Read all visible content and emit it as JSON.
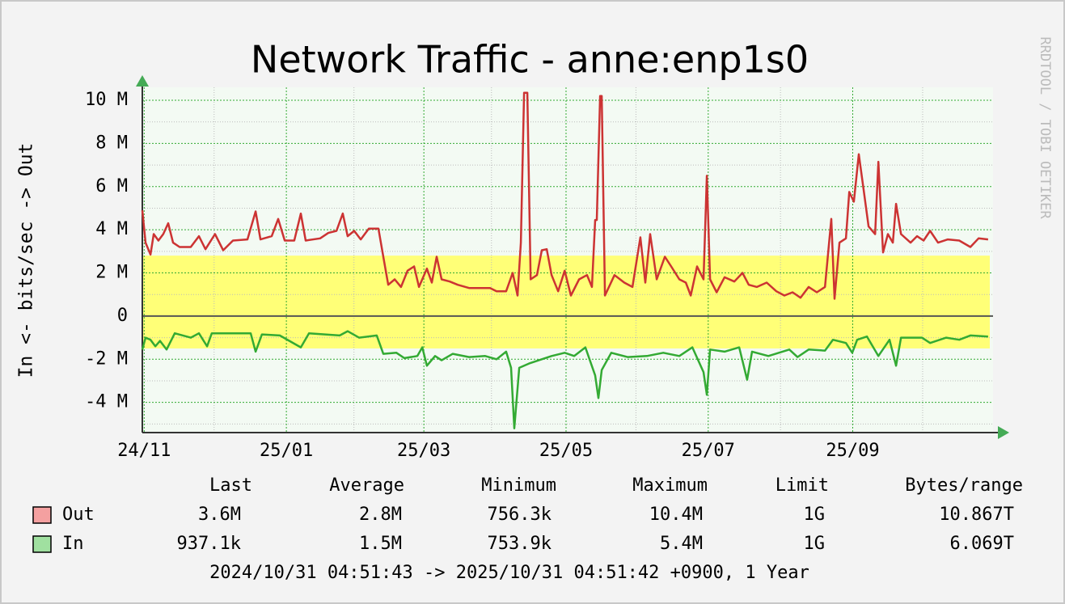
{
  "chart_data": {
    "type": "line",
    "title": "Network Traffic - anne:enp1s0",
    "y_label": "In <- bits/sec -> Out",
    "watermark": "RRDTOOL / TOBI OETIKER",
    "xlim": [
      0,
      365
    ],
    "xticks": [
      {
        "value": 0.8,
        "label": "24/11"
      },
      {
        "value": 61.8,
        "label": "25/01"
      },
      {
        "value": 120.8,
        "label": "25/03"
      },
      {
        "value": 181.8,
        "label": "25/05"
      },
      {
        "value": 242.8,
        "label": "25/07"
      },
      {
        "value": 304.8,
        "label": "25/09"
      }
    ],
    "xminor": [
      30.8,
      90.8,
      149.8,
      211.8,
      273.8,
      334.8
    ],
    "ylim": [
      -5.4,
      10.6
    ],
    "yticks": [
      {
        "value": -4,
        "label": "-4 M"
      },
      {
        "value": -2,
        "label": "-2 M"
      },
      0,
      {
        "value": 2,
        "label": "2 M"
      },
      {
        "value": 4,
        "label": "4 M"
      },
      {
        "value": 6,
        "label": "6 M"
      },
      {
        "value": 8,
        "label": "8 M"
      },
      {
        "value": 10,
        "label": "10 M"
      }
    ],
    "yminor": [
      -5,
      -3,
      -1,
      1,
      3,
      5,
      7,
      9
    ],
    "grid": true,
    "band": {
      "from": -1.5,
      "to": 2.8,
      "color": "#ffff77"
    },
    "legend_columns": [
      "Last",
      "Average",
      "Minimum",
      "Maximum",
      "Limit",
      "Bytes/range"
    ],
    "series": [
      {
        "name": "Out",
        "color": "#cc3333",
        "legend_color": "#f4a0a0",
        "stats": [
          "3.6M",
          "2.8M",
          "756.3k",
          "10.4M",
          "1G",
          "10.867T"
        ],
        "x": [
          0,
          1.4,
          3.5,
          4.9,
          6.9,
          9.0,
          11.1,
          13.2,
          16.0,
          20.8,
          24.3,
          27.1,
          31.2,
          34.7,
          38.9,
          45.1,
          48.6,
          50.7,
          55.5,
          58.3,
          61.1,
          65.2,
          68.0,
          70.1,
          76.3,
          79.8,
          83.3,
          86.0,
          88.1,
          90.9,
          93.7,
          97.2,
          101.3,
          103.4,
          105.5,
          108.3,
          111.0,
          113.8,
          116.6,
          118.7,
          122.1,
          124.2,
          126.3,
          128.4,
          131.9,
          135.3,
          140.2,
          149.2,
          152.0,
          156.1,
          158.9,
          161.0,
          162.4,
          163.8,
          165.2,
          166.6,
          169.3,
          171.4,
          173.5,
          175.6,
          178.4,
          181.2,
          183.9,
          187.4,
          190.8,
          192.9,
          194.3,
          195.0,
          196.4,
          197.1,
          198.5,
          202.6,
          206.8,
          210.3,
          213.7,
          215.8,
          217.9,
          220.7,
          224.2,
          226.9,
          230.4,
          233.2,
          235.3,
          238.0,
          240.8,
          242.2,
          243.6,
          246.4,
          249.8,
          254.0,
          257.5,
          260.2,
          263.7,
          267.9,
          272.0,
          275.5,
          279.0,
          282.4,
          285.9,
          289.4,
          292.9,
          295.6,
          297.0,
          299.1,
          301.9,
          303.3,
          305.3,
          307.4,
          309.5,
          311.6,
          314.4,
          315.8,
          317.8,
          319.9,
          322.0,
          323.4,
          325.5,
          329.6,
          332.4,
          335.2,
          338.0,
          341.4,
          345.6,
          350.5,
          355.3,
          358.8,
          362.9
        ],
        "values": [
          4.9,
          3.4,
          2.85,
          3.8,
          3.5,
          3.8,
          4.3,
          3.4,
          3.2,
          3.2,
          3.7,
          3.1,
          3.8,
          3.05,
          3.5,
          3.55,
          4.85,
          3.55,
          3.7,
          4.5,
          3.5,
          3.5,
          4.75,
          3.5,
          3.6,
          3.85,
          3.95,
          4.75,
          3.7,
          3.95,
          3.55,
          4.05,
          4.05,
          2.75,
          1.45,
          1.7,
          1.35,
          2.1,
          2.3,
          1.35,
          2.2,
          1.55,
          2.75,
          1.7,
          1.6,
          1.45,
          1.3,
          1.3,
          1.15,
          1.15,
          2.0,
          0.95,
          3.4,
          10.35,
          10.35,
          1.7,
          1.9,
          3.05,
          3.1,
          1.9,
          1.15,
          2.1,
          0.95,
          1.7,
          1.9,
          1.35,
          4.45,
          4.45,
          10.2,
          10.2,
          0.95,
          1.9,
          1.55,
          1.35,
          3.65,
          1.55,
          3.8,
          1.7,
          2.75,
          2.3,
          1.7,
          1.55,
          0.95,
          2.3,
          1.7,
          6.5,
          1.7,
          1.1,
          1.8,
          1.6,
          2.0,
          1.45,
          1.35,
          1.55,
          1.15,
          0.95,
          1.1,
          0.85,
          1.35,
          1.1,
          1.35,
          4.5,
          0.8,
          3.4,
          3.6,
          5.75,
          5.3,
          7.5,
          5.85,
          4.15,
          3.8,
          7.15,
          2.95,
          3.8,
          3.4,
          5.2,
          3.8,
          3.4,
          3.7,
          3.5,
          3.95,
          3.4,
          3.55,
          3.5,
          3.2,
          3.6,
          3.55
        ]
      },
      {
        "name": "In",
        "color": "#33aa33",
        "legend_color": "#a0e0a0",
        "stats": [
          "937.1k",
          "1.5M",
          "753.9k",
          "5.4M",
          "1G",
          "6.069T"
        ],
        "x": [
          0,
          1.4,
          3.5,
          5.6,
          7.6,
          10.4,
          13.9,
          20.8,
          24.3,
          27.8,
          29.8,
          39.6,
          46.5,
          48.6,
          51.3,
          59.0,
          68.0,
          71.5,
          84.7,
          88.1,
          93.0,
          100.6,
          103.4,
          109.0,
          112.4,
          118.0,
          120.1,
          122.1,
          125.6,
          128.4,
          133.2,
          140.2,
          147.1,
          152.0,
          156.1,
          158.2,
          159.6,
          161.7,
          165.9,
          171.4,
          175.6,
          181.2,
          185.3,
          190.1,
          194.3,
          195.7,
          197.1,
          201.2,
          208.2,
          216.5,
          223.5,
          230.4,
          236.0,
          240.8,
          242.2,
          243.6,
          249.8,
          256.1,
          259.5,
          261.6,
          268.6,
          277.6,
          281.1,
          285.9,
          292.9,
          296.3,
          301.9,
          304.6,
          306.7,
          310.9,
          315.8,
          320.6,
          323.4,
          325.5,
          334.5,
          338.0,
          344.9,
          350.5,
          355.3,
          362.9
        ],
        "values": [
          -1.55,
          -1.0,
          -1.1,
          -1.4,
          -1.15,
          -1.55,
          -0.8,
          -1.0,
          -0.8,
          -1.4,
          -0.8,
          -0.8,
          -0.8,
          -1.65,
          -0.85,
          -0.9,
          -1.45,
          -0.8,
          -0.9,
          -0.7,
          -1.0,
          -0.9,
          -1.75,
          -1.7,
          -1.95,
          -1.85,
          -1.45,
          -2.3,
          -1.85,
          -2.05,
          -1.75,
          -1.9,
          -1.85,
          -2.0,
          -1.65,
          -2.4,
          -5.2,
          -2.4,
          -2.2,
          -2.0,
          -1.85,
          -1.7,
          -1.85,
          -1.45,
          -2.75,
          -3.8,
          -2.5,
          -1.7,
          -1.9,
          -1.85,
          -1.7,
          -1.85,
          -1.45,
          -2.6,
          -3.65,
          -1.55,
          -1.65,
          -1.45,
          -2.95,
          -1.65,
          -1.85,
          -1.55,
          -1.9,
          -1.55,
          -1.6,
          -1.1,
          -1.25,
          -1.7,
          -1.1,
          -0.95,
          -1.85,
          -1.1,
          -2.3,
          -1.0,
          -1.0,
          -1.25,
          -1.0,
          -1.1,
          -0.9,
          -0.95
        ]
      }
    ],
    "footer": "2024/10/31 04:51:43 -> 2025/10/31 04:51:42 +0900, 1 Year"
  }
}
